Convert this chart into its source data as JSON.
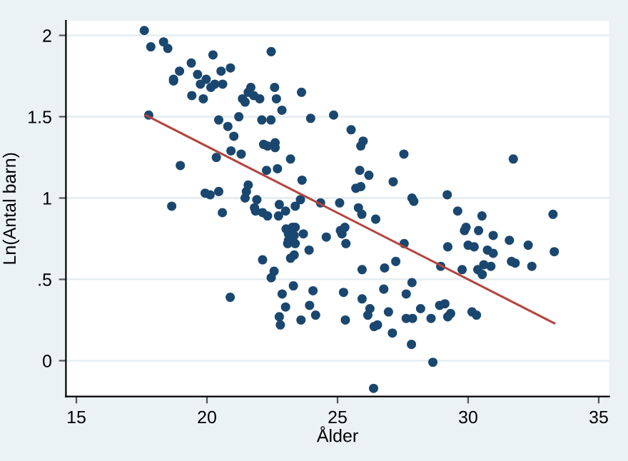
{
  "chart_data": {
    "type": "scatter",
    "xlabel": "Ålder",
    "ylabel": "Ln(Antal barn)",
    "xlim": [
      14.6,
      35.4
    ],
    "ylim": [
      -0.22,
      2.09
    ],
    "xticks": [
      15,
      20,
      25,
      30,
      35
    ],
    "yticks": [
      0,
      {
        "value": 0.5,
        "label": ".5"
      },
      1,
      1.5,
      2
    ],
    "grid": "y",
    "marker": "circle",
    "series": [
      {
        "color": "#1a476f",
        "x": [
          17.6,
          17.85,
          18.34,
          18.5,
          17.77,
          19.4,
          18.95,
          18.72,
          18.72,
          19.64,
          19.97,
          19.75,
          20.15,
          20.3,
          20.54,
          20.6,
          20.9,
          20.23,
          19.42,
          19.86,
          22.46,
          21.68,
          21.58,
          21.36,
          21.46,
          21.79,
          22.02,
          22.59,
          22.66,
          22.87,
          23.62,
          23.97,
          24.85,
          21.22,
          20.45,
          20.8,
          21.03,
          20.36,
          20.92,
          21.31,
          22.1,
          22.45,
          22.17,
          22.32,
          22.61,
          22.61,
          23.2,
          22.28,
          22.7,
          23.64,
          18.98,
          18.65,
          19.93,
          20.12,
          20.45,
          20.59,
          21.58,
          21.51,
          21.46,
          21.91,
          21.82,
          21.86,
          22.13,
          22.32,
          22.74,
          22.77,
          23.01,
          23.38,
          23.58,
          24.35,
          25.08,
          25.52,
          25.98,
          25.89,
          27.54,
          31.73,
          25.85,
          26.2,
          25.7,
          25.89,
          27.13,
          27.85,
          27.92,
          29.2,
          25.8,
          25.93,
          26.46,
          29.6,
          30.53,
          33.25,
          29.92,
          30.4,
          29.86,
          30.96,
          31.58,
          32.3,
          33.3,
          30.0,
          30.23,
          30.74,
          30.96,
          30.6,
          30.37,
          30.54,
          30.87,
          31.66,
          31.8,
          32.44,
          29.77,
          28.95,
          29.22,
          27.55,
          27.23,
          26.8,
          25.94,
          25.32,
          25.17,
          25.11,
          25.28,
          24.57,
          23.91,
          23.69,
          23.31,
          24.06,
          25.23,
          27.85,
          27.63,
          26.77,
          25.94,
          26.24,
          26.16,
          26.95,
          26.4,
          26.53,
          27.1,
          27.63,
          27.87,
          28.18,
          28.58,
          28.91,
          29.11,
          29.33,
          29.22,
          30.15,
          30.32,
          27.83,
          28.65,
          26.38,
          23.93,
          23.6,
          24.16,
          25.3,
          23.03,
          23.27,
          23.38,
          23.12,
          23.34,
          23.12,
          23.38,
          23.09,
          23.34,
          23.2,
          22.13,
          22.57,
          22.46,
          22.88,
          20.89,
          23.01,
          22.77,
          22.81
        ],
        "values": [
          2.03,
          1.93,
          1.96,
          1.92,
          1.51,
          1.83,
          1.78,
          1.73,
          1.72,
          1.76,
          1.73,
          1.7,
          1.68,
          1.7,
          1.78,
          1.7,
          1.8,
          1.88,
          1.63,
          1.61,
          1.9,
          1.68,
          1.65,
          1.61,
          1.59,
          1.63,
          1.61,
          1.68,
          1.61,
          1.54,
          1.65,
          1.49,
          1.51,
          1.5,
          1.48,
          1.44,
          1.38,
          1.25,
          1.29,
          1.27,
          1.48,
          1.48,
          1.33,
          1.32,
          1.34,
          1.31,
          1.24,
          1.17,
          1.18,
          1.11,
          1.2,
          0.95,
          1.03,
          1.02,
          1.04,
          0.91,
          1.08,
          1.04,
          1.0,
          0.99,
          0.94,
          0.92,
          0.91,
          0.89,
          0.89,
          0.96,
          0.92,
          0.95,
          0.99,
          0.97,
          0.97,
          1.42,
          1.35,
          1.32,
          1.27,
          1.24,
          1.17,
          1.14,
          1.06,
          1.07,
          1.1,
          1.0,
          0.98,
          1.02,
          0.94,
          0.9,
          0.87,
          0.92,
          0.89,
          0.9,
          0.82,
          0.8,
          0.8,
          0.77,
          0.74,
          0.71,
          0.67,
          0.71,
          0.7,
          0.68,
          0.66,
          0.59,
          0.56,
          0.53,
          0.58,
          0.61,
          0.6,
          0.58,
          0.56,
          0.58,
          0.7,
          0.72,
          0.61,
          0.57,
          0.56,
          0.72,
          0.78,
          0.8,
          0.82,
          0.76,
          0.68,
          0.78,
          0.46,
          0.43,
          0.42,
          0.48,
          0.41,
          0.44,
          0.38,
          0.32,
          0.28,
          0.3,
          0.21,
          0.22,
          0.17,
          0.26,
          0.26,
          0.32,
          0.26,
          0.34,
          0.35,
          0.29,
          0.27,
          0.3,
          0.28,
          0.1,
          -0.01,
          -0.17,
          0.34,
          0.25,
          0.28,
          0.25,
          0.81,
          0.82,
          0.82,
          0.78,
          0.77,
          0.74,
          0.72,
          0.72,
          0.65,
          0.63,
          0.62,
          0.55,
          0.51,
          0.41,
          0.39,
          0.33,
          0.27,
          0.22
        ]
      },
      {
        "color": "#b5443f",
        "type": "line",
        "marker": "none",
        "x": [
          17.65,
          33.3
        ],
        "values": [
          1.51,
          0.23
        ]
      }
    ]
  }
}
